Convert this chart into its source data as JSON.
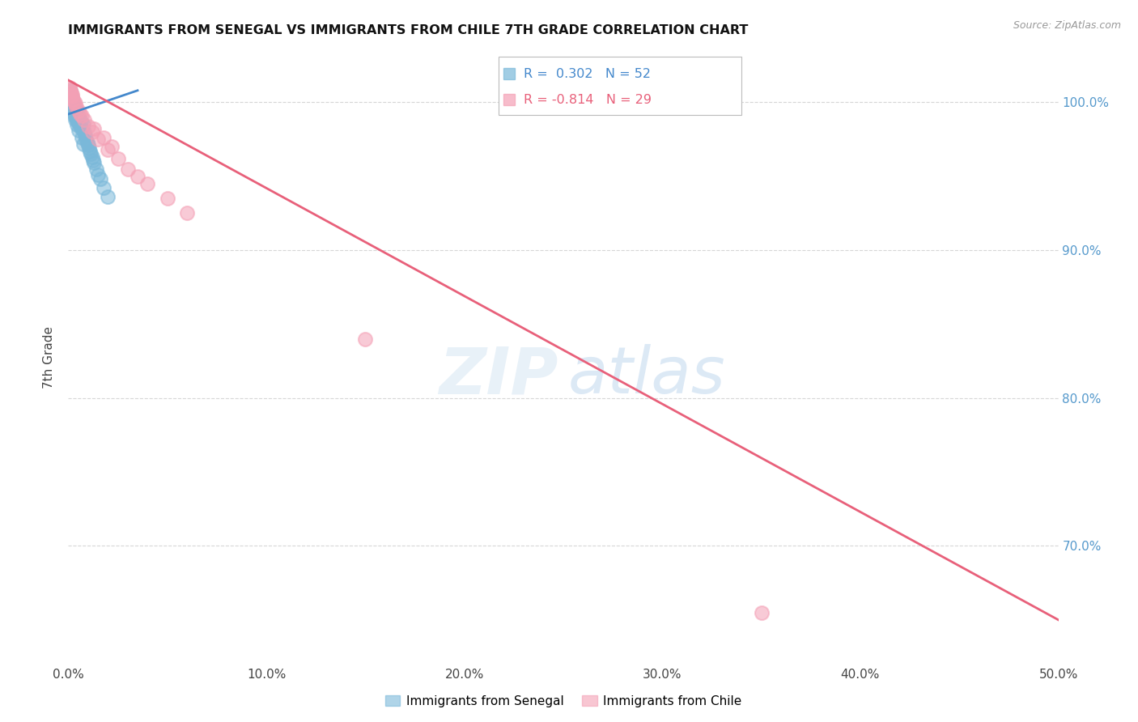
{
  "title": "IMMIGRANTS FROM SENEGAL VS IMMIGRANTS FROM CHILE 7TH GRADE CORRELATION CHART",
  "source": "Source: ZipAtlas.com",
  "ylabel": "7th Grade",
  "xlim": [
    0.0,
    50.0
  ],
  "ylim": [
    62.0,
    103.5
  ],
  "yticks": [
    100.0,
    90.0,
    80.0,
    70.0
  ],
  "xticks": [
    0.0,
    10.0,
    20.0,
    30.0,
    40.0,
    50.0
  ],
  "senegal_R": 0.302,
  "senegal_N": 52,
  "chile_R": -0.814,
  "chile_N": 29,
  "senegal_color": "#7ab8d9",
  "chile_color": "#f4a0b5",
  "senegal_line_color": "#4488cc",
  "chile_line_color": "#e8607a",
  "background_color": "#ffffff",
  "grid_color": "#cccccc",
  "right_axis_color": "#5599cc",
  "senegal_x": [
    0.05,
    0.08,
    0.1,
    0.12,
    0.15,
    0.18,
    0.2,
    0.22,
    0.25,
    0.28,
    0.3,
    0.33,
    0.35,
    0.38,
    0.4,
    0.42,
    0.45,
    0.48,
    0.5,
    0.55,
    0.6,
    0.65,
    0.7,
    0.75,
    0.8,
    0.85,
    0.9,
    0.95,
    1.0,
    1.05,
    1.1,
    1.15,
    1.2,
    1.25,
    1.3,
    1.4,
    1.5,
    1.6,
    1.8,
    2.0,
    0.06,
    0.09,
    0.13,
    0.17,
    0.23,
    0.27,
    0.32,
    0.37,
    0.43,
    0.52,
    0.68,
    0.78
  ],
  "senegal_y": [
    100.5,
    100.2,
    100.8,
    100.0,
    99.5,
    100.3,
    99.8,
    100.1,
    99.6,
    99.9,
    99.4,
    99.7,
    99.2,
    99.5,
    99.0,
    99.3,
    98.8,
    99.1,
    98.6,
    98.9,
    98.4,
    98.7,
    98.2,
    98.5,
    98.0,
    97.8,
    97.5,
    97.3,
    97.1,
    96.9,
    96.7,
    96.5,
    96.3,
    96.1,
    95.9,
    95.5,
    95.1,
    94.8,
    94.2,
    93.6,
    100.4,
    100.1,
    99.7,
    100.0,
    99.3,
    99.6,
    99.1,
    98.8,
    98.5,
    98.1,
    97.6,
    97.2
  ],
  "chile_x": [
    0.05,
    0.1,
    0.15,
    0.2,
    0.25,
    0.3,
    0.4,
    0.5,
    0.6,
    0.8,
    1.0,
    1.2,
    1.5,
    2.0,
    2.5,
    3.0,
    4.0,
    5.0,
    6.0,
    0.08,
    0.18,
    0.35,
    0.7,
    1.3,
    1.8,
    2.2,
    3.5,
    35.0,
    15.0
  ],
  "chile_y": [
    101.0,
    100.8,
    100.6,
    100.4,
    100.2,
    100.0,
    99.7,
    99.4,
    99.2,
    98.8,
    98.4,
    98.0,
    97.5,
    96.8,
    96.2,
    95.5,
    94.5,
    93.5,
    92.5,
    100.9,
    100.5,
    99.9,
    99.1,
    98.2,
    97.6,
    97.0,
    95.0,
    65.5,
    84.0
  ],
  "chile_line_x0": 0.0,
  "chile_line_y0": 101.5,
  "chile_line_x1": 50.0,
  "chile_line_y1": 65.0,
  "senegal_line_x0": 0.0,
  "senegal_line_y0": 99.2,
  "senegal_line_x1": 3.5,
  "senegal_line_y1": 100.8
}
